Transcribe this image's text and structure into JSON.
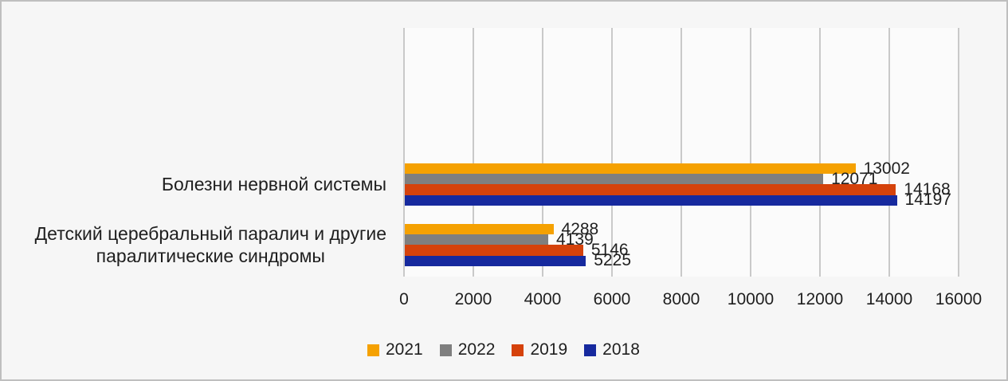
{
  "window": {
    "background_color": "#f6f6f6",
    "border_color": "#bfbfbf",
    "plot_background_color": "#fbfbfb",
    "gridline_color": "#c9c9c9",
    "text_color": "#1f1f1f"
  },
  "chart_data": {
    "type": "bar",
    "orientation": "horizontal",
    "title": "",
    "categories": [
      "Болезни нервной системы",
      "Детский церебральный паралич и другие\nпаралитические синдромы"
    ],
    "series": [
      {
        "name": "2021",
        "color": "#f5a101",
        "values": [
          13002,
          4288
        ]
      },
      {
        "name": "2022",
        "color": "#7f7f7f",
        "values": [
          12071,
          4139
        ]
      },
      {
        "name": "2019",
        "color": "#d5420b",
        "values": [
          14168,
          5146
        ]
      },
      {
        "name": "2018",
        "color": "#16299e",
        "values": [
          14197,
          5225
        ]
      }
    ],
    "xlim": [
      0,
      16000
    ],
    "x_ticks": [
      "0",
      "2000",
      "4000",
      "6000",
      "8000",
      "10000",
      "12000",
      "14000",
      "16000"
    ],
    "grid": "vertical",
    "legend_position": "bottom",
    "data_labels": "outside-end"
  }
}
